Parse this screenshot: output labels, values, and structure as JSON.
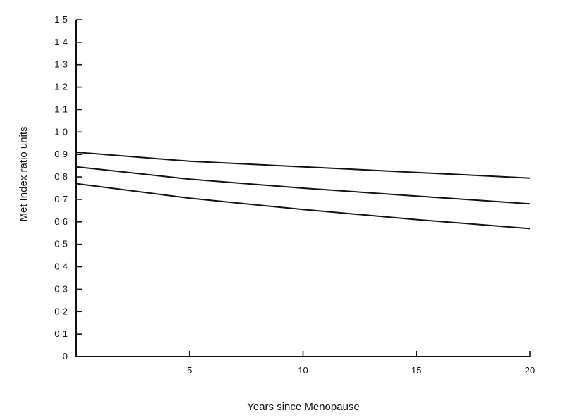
{
  "chart_data": {
    "type": "line",
    "title": "",
    "xlabel": "Years since Menopause",
    "ylabel": "Met Index ratio units",
    "xlim": [
      0,
      20
    ],
    "ylim": [
      0,
      1.5
    ],
    "x_ticks": [
      {
        "value": 5,
        "label": "5"
      },
      {
        "value": 10,
        "label": "10"
      },
      {
        "value": 15,
        "label": "15"
      },
      {
        "value": 20,
        "label": "20"
      }
    ],
    "y_ticks": [
      {
        "value": 0,
        "label": "0"
      },
      {
        "value": 0.1,
        "label": "0·1"
      },
      {
        "value": 0.2,
        "label": "0·2"
      },
      {
        "value": 0.3,
        "label": "0·3"
      },
      {
        "value": 0.4,
        "label": "0·4"
      },
      {
        "value": 0.5,
        "label": "0·5"
      },
      {
        "value": 0.6,
        "label": "0·6"
      },
      {
        "value": 0.7,
        "label": "0·7"
      },
      {
        "value": 0.8,
        "label": "0·8"
      },
      {
        "value": 0.9,
        "label": "0·9"
      },
      {
        "value": 1.0,
        "label": "1·0"
      },
      {
        "value": 1.1,
        "label": "1·1"
      },
      {
        "value": 1.2,
        "label": "1·2"
      },
      {
        "value": 1.3,
        "label": "1·3"
      },
      {
        "value": 1.4,
        "label": "1·4"
      },
      {
        "value": 1.5,
        "label": "1·5"
      }
    ],
    "grid": false,
    "x": [
      0,
      5,
      10,
      15,
      20
    ],
    "series": [
      {
        "values": [
          0.91,
          0.87,
          0.845,
          0.82,
          0.795
        ]
      },
      {
        "values": [
          0.845,
          0.79,
          0.75,
          0.715,
          0.68
        ]
      },
      {
        "values": [
          0.77,
          0.705,
          0.655,
          0.61,
          0.57
        ]
      }
    ]
  }
}
